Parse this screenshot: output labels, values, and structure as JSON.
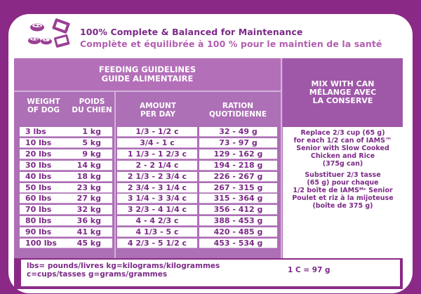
{
  "header": {
    "headline_en": "100% Complete & Balanced for Maintenance",
    "headline_fr": "Complète et équilibrée à 100 % pour le maintien de la santé",
    "icon": "bowls-icon"
  },
  "guide": {
    "title_en": "FEEDING GUIDELINES",
    "title_fr": "GUIDE ALIMENTAIRE",
    "col_weight": [
      "WEIGHT",
      "OF DOG"
    ],
    "col_poids": [
      "POIDS",
      "DU CHIEN"
    ],
    "col_amount": [
      "AMOUNT",
      "PER DAY"
    ],
    "col_ration": [
      "RATION",
      "QUOTIDIENNE"
    ],
    "rows": [
      {
        "lbs": "3 lbs",
        "kg": "1 kg",
        "amount": "1/3 - 1/2 c",
        "ration": "32 - 49 g"
      },
      {
        "lbs": "10 lbs",
        "kg": "5 kg",
        "amount": "3/4 - 1 c",
        "ration": "73 - 97 g"
      },
      {
        "lbs": "20 lbs",
        "kg": "9 kg",
        "amount": "1 1/3 - 1 2/3 c",
        "ration": "129 - 162 g"
      },
      {
        "lbs": "30 lbs",
        "kg": "14 kg",
        "amount": "2 - 2 1/4 c",
        "ration": "194 - 218 g"
      },
      {
        "lbs": "40 lbs",
        "kg": "18 kg",
        "amount": "2 1/3 - 2 3/4 c",
        "ration": "226 - 267 g"
      },
      {
        "lbs": "50 lbs",
        "kg": "23 kg",
        "amount": "2 3/4 - 3 1/4 c",
        "ration": "267 - 315 g"
      },
      {
        "lbs": "60 lbs",
        "kg": "27 kg",
        "amount": "3 1/4 - 3 3/4 c",
        "ration": "315 - 364 g"
      },
      {
        "lbs": "70 lbs",
        "kg": "32 kg",
        "amount": "3 2/3 - 4 1/4 c",
        "ration": "356 - 412 g"
      },
      {
        "lbs": "80 lbs",
        "kg": "36 kg",
        "amount": "4 - 4 2/3 c",
        "ration": "388 - 453 g"
      },
      {
        "lbs": "90 lbs",
        "kg": "41 kg",
        "amount": "4 1/3 - 5 c",
        "ration": "420 - 485 g"
      },
      {
        "lbs": "100 lbs",
        "kg": "45 kg",
        "amount": "4 2/3 - 5 1/2 c",
        "ration": "453 - 534 g"
      }
    ]
  },
  "mix": {
    "head": [
      "MIX WITH CAN",
      "MÉLANGE AVEC",
      "LA CONSERVE"
    ],
    "en": [
      "Replace 2/3 cup (65 g)",
      "for each 1/2 can of IAMS™",
      "Senior with Slow Cooked",
      "Chicken and Rice",
      "(375g can)"
    ],
    "fr": [
      "Substituer 2/3 tasse",
      "(65 g) pour chaque",
      "1/2 boîte de IAMSᴹᶜ Senior",
      "Poulet et riz à la mijoteuse",
      "(boîte de 375 g)"
    ]
  },
  "footer": {
    "line1": "lbs= pounds/livres kg=kilograms/kilogrammes",
    "line2": "c=cups/tasses g=grams/grammes",
    "cup": "1 C = 97 g"
  },
  "colors": {
    "brand_purple": "#8a2a86",
    "table_purple": "#ad6fb6",
    "text_purple": "#7b2a86"
  }
}
